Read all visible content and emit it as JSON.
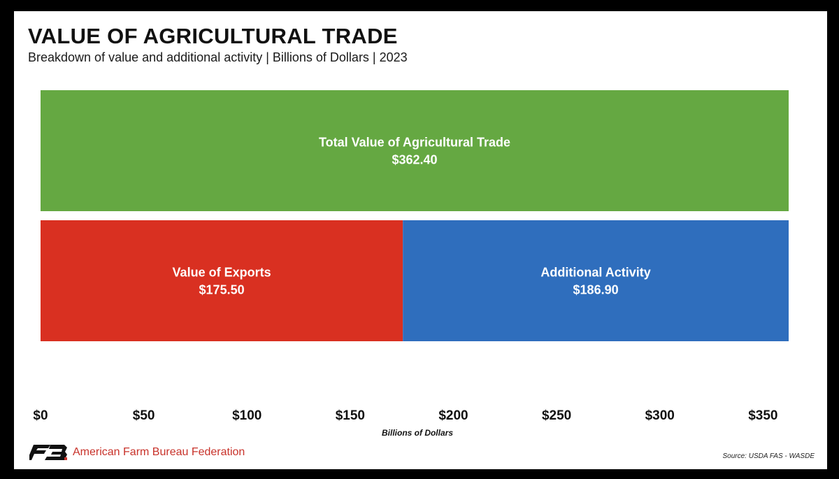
{
  "title": "VALUE OF AGRICULTURAL TRADE",
  "subtitle": "Breakdown of value and additional activity | Billions of Dollars | 2023",
  "org_name": "American Farm Bureau Federation",
  "source": "Source: USDA FAS - WASDE",
  "chart_data": {
    "type": "bar",
    "orientation": "horizontal",
    "stacked": true,
    "xlabel": "Billions of Dollars",
    "xlim": [
      0,
      362.4
    ],
    "xticks": [
      0,
      50,
      100,
      150,
      200,
      250,
      300,
      350
    ],
    "xtick_labels": [
      "$0",
      "$50",
      "$100",
      "$150",
      "$200",
      "$250",
      "$300",
      "$350"
    ],
    "grid": false,
    "rows": [
      {
        "segments": [
          {
            "label": "Total Value of Agricultural Trade",
            "value": 362.4,
            "value_label": "$362.40",
            "color": "#65a842"
          }
        ]
      },
      {
        "segments": [
          {
            "label": "Value of Exports",
            "value": 175.5,
            "value_label": "$175.50",
            "color": "#d93021"
          },
          {
            "label": "Additional Activity",
            "value": 186.9,
            "value_label": "$186.90",
            "color": "#2f6ebd"
          }
        ]
      }
    ]
  }
}
